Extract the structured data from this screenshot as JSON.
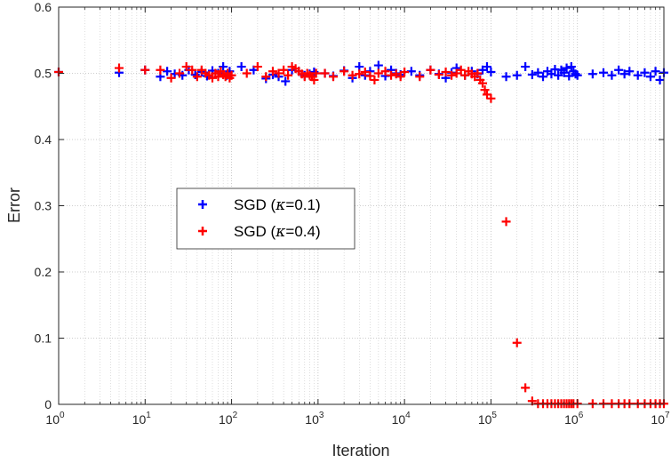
{
  "chart_data": {
    "type": "scatter",
    "xlabel": "Iteration",
    "ylabel": "Error",
    "xscale": "log",
    "xlim": [
      1,
      10000000
    ],
    "ylim": [
      0,
      0.6
    ],
    "grid": true,
    "legend_position": "center-left",
    "x_ticks": [
      {
        "value": 1,
        "base": "10",
        "exp": "0"
      },
      {
        "value": 10,
        "base": "10",
        "exp": "1"
      },
      {
        "value": 100,
        "base": "10",
        "exp": "2"
      },
      {
        "value": 1000,
        "base": "10",
        "exp": "3"
      },
      {
        "value": 10000,
        "base": "10",
        "exp": "4"
      },
      {
        "value": 100000,
        "base": "10",
        "exp": "5"
      },
      {
        "value": 1000000,
        "base": "10",
        "exp": "6"
      },
      {
        "value": 10000000,
        "base": "10",
        "exp": "7"
      }
    ],
    "y_ticks": [
      {
        "value": 0,
        "label": "0"
      },
      {
        "value": 0.1,
        "label": "0.1"
      },
      {
        "value": 0.2,
        "label": "0.2"
      },
      {
        "value": 0.3,
        "label": "0.3"
      },
      {
        "value": 0.4,
        "label": "0.4"
      },
      {
        "value": 0.5,
        "label": "0.5"
      },
      {
        "value": 0.6,
        "label": "0.6"
      }
    ],
    "series": [
      {
        "name": "SGD (κ=0.1)",
        "legend_prefix": "SGD (",
        "legend_symbol": "κ",
        "legend_suffix": "=0.1)",
        "color": "#0000ff",
        "marker": "plus",
        "points": [
          [
            1,
            0.502
          ],
          [
            5,
            0.501
          ],
          [
            10,
            0.505
          ],
          [
            15,
            0.495
          ],
          [
            18,
            0.503
          ],
          [
            22,
            0.499
          ],
          [
            27,
            0.497
          ],
          [
            32,
            0.505
          ],
          [
            38,
            0.498
          ],
          [
            45,
            0.502
          ],
          [
            52,
            0.496
          ],
          [
            60,
            0.504
          ],
          [
            70,
            0.5
          ],
          [
            80,
            0.51
          ],
          [
            88,
            0.497
          ],
          [
            95,
            0.503
          ],
          [
            130,
            0.51
          ],
          [
            180,
            0.505
          ],
          [
            250,
            0.492
          ],
          [
            300,
            0.498
          ],
          [
            350,
            0.495
          ],
          [
            420,
            0.488
          ],
          [
            500,
            0.505
          ],
          [
            600,
            0.503
          ],
          [
            700,
            0.497
          ],
          [
            800,
            0.499
          ],
          [
            900,
            0.502
          ],
          [
            1200,
            0.5
          ],
          [
            1500,
            0.496
          ],
          [
            2000,
            0.504
          ],
          [
            2500,
            0.493
          ],
          [
            3000,
            0.51
          ],
          [
            3500,
            0.497
          ],
          [
            4000,
            0.503
          ],
          [
            5000,
            0.512
          ],
          [
            6000,
            0.496
          ],
          [
            7000,
            0.505
          ],
          [
            8000,
            0.5
          ],
          [
            9000,
            0.498
          ],
          [
            12000,
            0.503
          ],
          [
            15000,
            0.497
          ],
          [
            20000,
            0.505
          ],
          [
            25000,
            0.499
          ],
          [
            30000,
            0.493
          ],
          [
            35000,
            0.501
          ],
          [
            40000,
            0.508
          ],
          [
            50000,
            0.497
          ],
          [
            60000,
            0.503
          ],
          [
            70000,
            0.499
          ],
          [
            80000,
            0.505
          ],
          [
            90000,
            0.51
          ],
          [
            100000,
            0.502
          ],
          [
            150000,
            0.495
          ],
          [
            200000,
            0.497
          ],
          [
            250000,
            0.51
          ],
          [
            300000,
            0.498
          ],
          [
            350000,
            0.501
          ],
          [
            400000,
            0.495
          ],
          [
            450000,
            0.503
          ],
          [
            500000,
            0.499
          ],
          [
            550000,
            0.506
          ],
          [
            600000,
            0.497
          ],
          [
            650000,
            0.505
          ],
          [
            700000,
            0.501
          ],
          [
            750000,
            0.508
          ],
          [
            800000,
            0.496
          ],
          [
            850000,
            0.51
          ],
          [
            900000,
            0.503
          ],
          [
            950000,
            0.499
          ],
          [
            1000000,
            0.497
          ],
          [
            1500000,
            0.499
          ],
          [
            2000000,
            0.501
          ],
          [
            2500000,
            0.497
          ],
          [
            3000000,
            0.505
          ],
          [
            3500000,
            0.499
          ],
          [
            4000000,
            0.503
          ],
          [
            5000000,
            0.497
          ],
          [
            6000000,
            0.501
          ],
          [
            7000000,
            0.495
          ],
          [
            8000000,
            0.503
          ],
          [
            9000000,
            0.49
          ],
          [
            10000000,
            0.501
          ]
        ]
      },
      {
        "name": "SGD (κ=0.4)",
        "legend_prefix": "SGD (",
        "legend_symbol": "κ",
        "legend_suffix": "=0.4)",
        "color": "#ff0000",
        "marker": "plus",
        "points": [
          [
            1,
            0.502
          ],
          [
            5,
            0.508
          ],
          [
            10,
            0.505
          ],
          [
            15,
            0.505
          ],
          [
            20,
            0.493
          ],
          [
            25,
            0.5
          ],
          [
            30,
            0.51
          ],
          [
            35,
            0.505
          ],
          [
            40,
            0.495
          ],
          [
            45,
            0.505
          ],
          [
            50,
            0.5
          ],
          [
            55,
            0.497
          ],
          [
            60,
            0.493
          ],
          [
            65,
            0.5
          ],
          [
            70,
            0.495
          ],
          [
            75,
            0.503
          ],
          [
            80,
            0.498
          ],
          [
            85,
            0.495
          ],
          [
            90,
            0.5
          ],
          [
            95,
            0.493
          ],
          [
            100,
            0.497
          ],
          [
            150,
            0.5
          ],
          [
            200,
            0.51
          ],
          [
            250,
            0.495
          ],
          [
            300,
            0.503
          ],
          [
            350,
            0.5
          ],
          [
            400,
            0.505
          ],
          [
            450,
            0.497
          ],
          [
            500,
            0.51
          ],
          [
            550,
            0.507
          ],
          [
            600,
            0.503
          ],
          [
            650,
            0.499
          ],
          [
            700,
            0.495
          ],
          [
            750,
            0.5
          ],
          [
            800,
            0.497
          ],
          [
            850,
            0.495
          ],
          [
            900,
            0.49
          ],
          [
            950,
            0.5
          ],
          [
            1200,
            0.5
          ],
          [
            1500,
            0.495
          ],
          [
            2000,
            0.503
          ],
          [
            2500,
            0.497
          ],
          [
            3000,
            0.499
          ],
          [
            3500,
            0.502
          ],
          [
            4000,
            0.496
          ],
          [
            4500,
            0.49
          ],
          [
            5000,
            0.5
          ],
          [
            6000,
            0.503
          ],
          [
            7000,
            0.497
          ],
          [
            8000,
            0.499
          ],
          [
            9000,
            0.495
          ],
          [
            10000,
            0.502
          ],
          [
            15000,
            0.495
          ],
          [
            20000,
            0.505
          ],
          [
            25000,
            0.498
          ],
          [
            30000,
            0.502
          ],
          [
            35000,
            0.497
          ],
          [
            40000,
            0.5
          ],
          [
            45000,
            0.505
          ],
          [
            50000,
            0.497
          ],
          [
            55000,
            0.503
          ],
          [
            60000,
            0.499
          ],
          [
            65000,
            0.495
          ],
          [
            70000,
            0.5
          ],
          [
            75000,
            0.49
          ],
          [
            80000,
            0.485
          ],
          [
            85000,
            0.475
          ],
          [
            90000,
            0.468
          ],
          [
            100000,
            0.462
          ],
          [
            150000,
            0.276
          ],
          [
            200000,
            0.093
          ],
          [
            250000,
            0.025
          ],
          [
            300000,
            0.005
          ],
          [
            350000,
            0.001
          ],
          [
            400000,
            0.001
          ],
          [
            450000,
            0.001
          ],
          [
            500000,
            0.001
          ],
          [
            550000,
            0.001
          ],
          [
            600000,
            0.001
          ],
          [
            650000,
            0.001
          ],
          [
            700000,
            0.001
          ],
          [
            750000,
            0.001
          ],
          [
            800000,
            0.001
          ],
          [
            850000,
            0.001
          ],
          [
            900000,
            0.001
          ],
          [
            1000000,
            0.001
          ],
          [
            1500000,
            0.001
          ],
          [
            2000000,
            0.001
          ],
          [
            2500000,
            0.001
          ],
          [
            3000000,
            0.001
          ],
          [
            3500000,
            0.001
          ],
          [
            4000000,
            0.001
          ],
          [
            5000000,
            0.001
          ],
          [
            6000000,
            0.001
          ],
          [
            7000000,
            0.001
          ],
          [
            8000000,
            0.001
          ],
          [
            9000000,
            0.001
          ],
          [
            10000000,
            0.001
          ]
        ]
      }
    ]
  }
}
